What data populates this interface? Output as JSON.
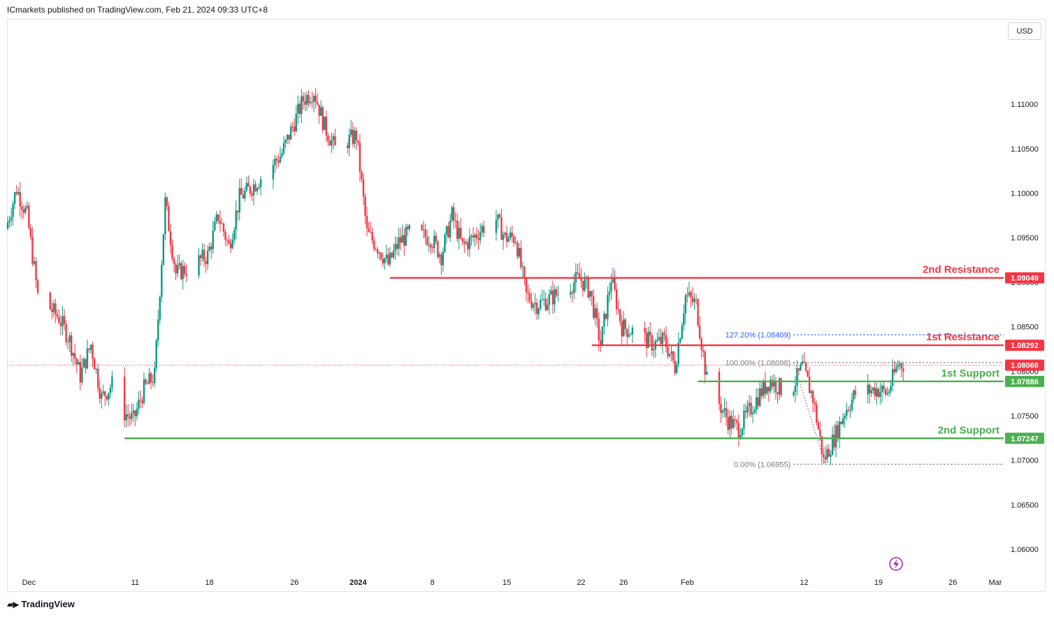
{
  "header": {
    "publisher_text": "ICmarkets published on TradingView.com, Feb 21, 2024 09:33 UTC+8"
  },
  "toolbar": {
    "currency_label": "USD"
  },
  "footer": {
    "brand": "TradingView"
  },
  "colors": {
    "up": "#089981",
    "down": "#f23645",
    "resistance": "#f23645",
    "support": "#4caf50",
    "fib_blue": "#2962ff",
    "fib_gray": "#787b86",
    "axis_text": "#131722"
  },
  "chart_data": {
    "type": "candlestick",
    "symbol_unit": "USD",
    "ylim": [
      1.0575,
      1.1195
    ],
    "y_ticks": [
      {
        "value": 1.06,
        "label": "1.06000"
      },
      {
        "value": 1.065,
        "label": "1.06500"
      },
      {
        "value": 1.07,
        "label": "1.07000"
      },
      {
        "value": 1.075,
        "label": "1.07500"
      },
      {
        "value": 1.08,
        "label": "1.08000"
      },
      {
        "value": 1.085,
        "label": "1.08500"
      },
      {
        "value": 1.09,
        "label": "1.09000"
      },
      {
        "value": 1.095,
        "label": "1.09500"
      },
      {
        "value": 1.1,
        "label": "1.10000"
      },
      {
        "value": 1.105,
        "label": "1.10500"
      },
      {
        "value": 1.11,
        "label": "1.11000"
      }
    ],
    "x_ticks": [
      {
        "date": "2023-12-01",
        "label": "Dec",
        "bold": false
      },
      {
        "date": "2023-12-11",
        "label": "11",
        "bold": false
      },
      {
        "date": "2023-12-18",
        "label": "18",
        "bold": false
      },
      {
        "date": "2023-12-26",
        "label": "26",
        "bold": false
      },
      {
        "date": "2024-01-01",
        "label": "2024",
        "bold": true
      },
      {
        "date": "2024-01-08",
        "label": "8",
        "bold": false
      },
      {
        "date": "2024-01-15",
        "label": "15",
        "bold": false
      },
      {
        "date": "2024-01-22",
        "label": "22",
        "bold": false
      },
      {
        "date": "2024-01-26",
        "label": "26",
        "bold": false
      },
      {
        "date": "2024-02-01",
        "label": "Feb",
        "bold": false
      },
      {
        "date": "2024-02-12",
        "label": "12",
        "bold": false
      },
      {
        "date": "2024-02-19",
        "label": "19",
        "bold": false
      },
      {
        "date": "2024-02-26",
        "label": "26",
        "bold": false
      },
      {
        "date": "2024-03-01",
        "label": "Mar",
        "bold": false
      }
    ],
    "x_range": [
      "2023-11-29",
      "2024-03-01"
    ],
    "current_price": {
      "value": 1.08068,
      "label": "1.08068"
    },
    "levels": [
      {
        "name": "2nd Resistance",
        "value": 1.09049,
        "label": "1.09049",
        "kind": "resistance",
        "start": "2024-01-04"
      },
      {
        "name": "1st Resistance",
        "value": 1.08292,
        "label": "1.08292",
        "kind": "resistance",
        "start": "2024-01-23"
      },
      {
        "name": "1st Support",
        "value": 1.07886,
        "label": "1.07886",
        "kind": "support",
        "start": "2024-02-02"
      },
      {
        "name": "2nd Support",
        "value": 1.07247,
        "label": "1.07247",
        "kind": "support",
        "start": "2023-12-10"
      }
    ],
    "fibonacci": [
      {
        "label": "127.20% (1.08409)",
        "value": 1.08409,
        "color": "blue"
      },
      {
        "label": "100.00% (1.08098)",
        "value": 1.08098,
        "color": "gray"
      },
      {
        "label": "0.00% (1.06955)",
        "value": 1.06955,
        "color": "gray"
      }
    ],
    "fib_anchors": [
      {
        "date": "2024-02-11",
        "value": 1.08098
      },
      {
        "date": "2024-02-14",
        "value": 1.06955
      }
    ],
    "path": [
      {
        "date": "2023-11-29",
        "price": 1.096
      },
      {
        "date": "2023-11-30",
        "price": 1.1005
      },
      {
        "date": "2023-12-01",
        "price": 1.0975
      },
      {
        "date": "2023-12-02",
        "price": 1.0885
      },
      {
        "date": "2023-12-04",
        "price": 1.086
      },
      {
        "date": "2023-12-05",
        "price": 1.0835
      },
      {
        "date": "2023-12-06",
        "price": 1.0795
      },
      {
        "date": "2023-12-07",
        "price": 1.083
      },
      {
        "date": "2023-12-08",
        "price": 1.077
      },
      {
        "date": "2023-12-09",
        "price": 1.0785
      },
      {
        "date": "2023-12-10",
        "price": 1.0755
      },
      {
        "date": "2023-12-11",
        "price": 1.0745
      },
      {
        "date": "2023-12-12",
        "price": 1.078
      },
      {
        "date": "2023-12-13",
        "price": 1.0795
      },
      {
        "date": "2023-12-14",
        "price": 1.099
      },
      {
        "date": "2023-12-15",
        "price": 1.091
      },
      {
        "date": "2023-12-16",
        "price": 1.0915
      },
      {
        "date": "2023-12-18",
        "price": 1.093
      },
      {
        "date": "2023-12-19",
        "price": 1.0975
      },
      {
        "date": "2023-12-20",
        "price": 1.094
      },
      {
        "date": "2023-12-21",
        "price": 1.0995
      },
      {
        "date": "2023-12-22",
        "price": 1.1005
      },
      {
        "date": "2023-12-24",
        "price": 1.103
      },
      {
        "date": "2023-12-25",
        "price": 1.1045
      },
      {
        "date": "2023-12-27",
        "price": 1.1105
      },
      {
        "date": "2023-12-28",
        "price": 1.1115
      },
      {
        "date": "2023-12-29",
        "price": 1.1075
      },
      {
        "date": "2023-12-30",
        "price": 1.105
      },
      {
        "date": "2024-01-01",
        "price": 1.1065
      },
      {
        "date": "2024-01-02",
        "price": 1.0955
      },
      {
        "date": "2024-01-03",
        "price": 1.094
      },
      {
        "date": "2024-01-04",
        "price": 1.092
      },
      {
        "date": "2024-01-05",
        "price": 1.0945
      },
      {
        "date": "2024-01-06",
        "price": 1.0955
      },
      {
        "date": "2024-01-08",
        "price": 1.095
      },
      {
        "date": "2024-01-09",
        "price": 1.093
      },
      {
        "date": "2024-01-10",
        "price": 1.0975
      },
      {
        "date": "2024-01-11",
        "price": 1.094
      },
      {
        "date": "2024-01-12",
        "price": 1.095
      },
      {
        "date": "2024-01-14",
        "price": 1.0975
      },
      {
        "date": "2024-01-15",
        "price": 1.095
      },
      {
        "date": "2024-01-16",
        "price": 1.095
      },
      {
        "date": "2024-01-17",
        "price": 1.0885
      },
      {
        "date": "2024-01-18",
        "price": 1.0875
      },
      {
        "date": "2024-01-19",
        "price": 1.088
      },
      {
        "date": "2024-01-21",
        "price": 1.0895
      },
      {
        "date": "2024-01-22",
        "price": 1.0905
      },
      {
        "date": "2024-01-23",
        "price": 1.089
      },
      {
        "date": "2024-01-24",
        "price": 1.083
      },
      {
        "date": "2024-01-25",
        "price": 1.0905
      },
      {
        "date": "2024-01-26",
        "price": 1.085
      },
      {
        "date": "2024-01-27",
        "price": 1.0845
      },
      {
        "date": "2024-01-29",
        "price": 1.083
      },
      {
        "date": "2024-01-30",
        "price": 1.0835
      },
      {
        "date": "2024-01-31",
        "price": 1.0805
      },
      {
        "date": "2024-02-01",
        "price": 1.0885
      },
      {
        "date": "2024-02-02",
        "price": 1.0875
      },
      {
        "date": "2024-02-03",
        "price": 1.079
      },
      {
        "date": "2024-02-05",
        "price": 1.0745
      },
      {
        "date": "2024-02-06",
        "price": 1.0735
      },
      {
        "date": "2024-02-07",
        "price": 1.0755
      },
      {
        "date": "2024-02-08",
        "price": 1.0775
      },
      {
        "date": "2024-02-09",
        "price": 1.079
      },
      {
        "date": "2024-02-10",
        "price": 1.078
      },
      {
        "date": "2024-02-11",
        "price": 1.078
      },
      {
        "date": "2024-02-12",
        "price": 1.0805
      },
      {
        "date": "2024-02-13",
        "price": 1.077
      },
      {
        "date": "2024-02-14",
        "price": 1.07
      },
      {
        "date": "2024-02-15",
        "price": 1.0725
      },
      {
        "date": "2024-02-16",
        "price": 1.0755
      },
      {
        "date": "2024-02-17",
        "price": 1.0775
      },
      {
        "date": "2024-02-19",
        "price": 1.078
      },
      {
        "date": "2024-02-20",
        "price": 1.0775
      },
      {
        "date": "2024-02-21",
        "price": 1.0808
      }
    ],
    "x_axis_icon": "lightning-icon"
  }
}
